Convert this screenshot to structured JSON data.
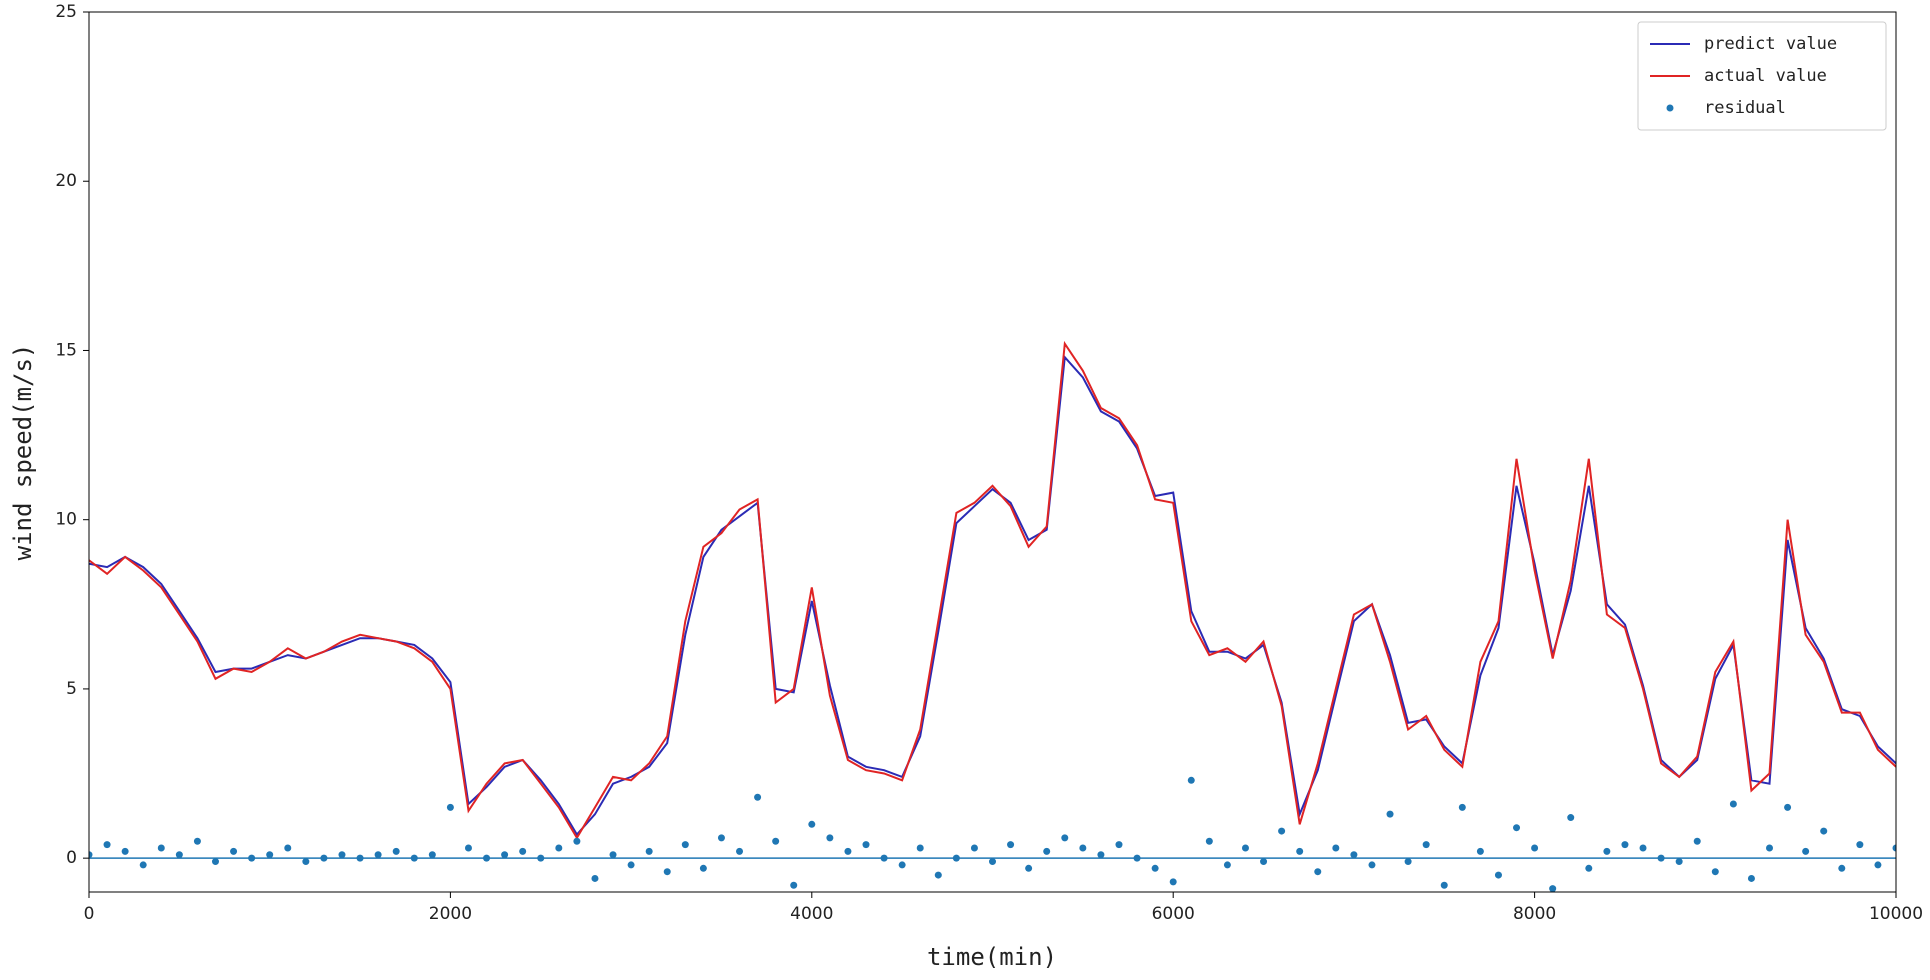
{
  "chart_data": {
    "type": "line",
    "xlabel": "time(min)",
    "ylabel": "wind speed(m/s)",
    "xlim": [
      0,
      10000
    ],
    "xticks": [
      0,
      2000,
      4000,
      6000,
      8000,
      10000
    ],
    "ylim": [
      -1,
      25
    ],
    "yticks": [
      0,
      5,
      10,
      15,
      20,
      25
    ],
    "legend": "upper right",
    "x": [
      0,
      100,
      200,
      300,
      400,
      500,
      600,
      700,
      800,
      900,
      1000,
      1100,
      1200,
      1300,
      1400,
      1500,
      1600,
      1700,
      1800,
      1900,
      2000,
      2100,
      2200,
      2300,
      2400,
      2500,
      2600,
      2700,
      2800,
      2900,
      3000,
      3100,
      3200,
      3300,
      3400,
      3500,
      3600,
      3700,
      3800,
      3900,
      4000,
      4100,
      4200,
      4300,
      4400,
      4500,
      4600,
      4700,
      4800,
      4900,
      5000,
      5100,
      5200,
      5300,
      5400,
      5500,
      5600,
      5700,
      5800,
      5900,
      6000,
      6100,
      6200,
      6300,
      6400,
      6500,
      6600,
      6700,
      6800,
      6900,
      7000,
      7100,
      7200,
      7300,
      7400,
      7500,
      7600,
      7700,
      7800,
      7900,
      8000,
      8100,
      8200,
      8300,
      8400,
      8500,
      8600,
      8700,
      8800,
      8900,
      9000,
      9100,
      9200,
      9300,
      9400,
      9500,
      9600,
      9700,
      9800,
      9900,
      10000
    ],
    "series": [
      {
        "name": "predict value",
        "type": "line",
        "color": "#2b2bb5",
        "values": [
          8.7,
          8.6,
          8.9,
          8.6,
          8.1,
          7.3,
          6.5,
          5.5,
          5.6,
          5.6,
          5.8,
          6.0,
          5.9,
          6.1,
          6.3,
          6.5,
          6.5,
          6.4,
          6.3,
          5.9,
          5.2,
          1.6,
          2.1,
          2.7,
          2.9,
          2.3,
          1.6,
          0.7,
          1.3,
          2.2,
          2.4,
          2.7,
          3.4,
          6.6,
          8.9,
          9.7,
          10.1,
          10.5,
          5.0,
          4.9,
          7.6,
          5.1,
          3.0,
          2.7,
          2.6,
          2.4,
          3.6,
          6.7,
          9.9,
          10.4,
          10.9,
          10.5,
          9.4,
          9.7,
          14.8,
          14.2,
          13.2,
          12.9,
          12.1,
          10.7,
          10.8,
          7.3,
          6.1,
          6.1,
          5.9,
          6.3,
          4.6,
          1.3,
          2.6,
          4.8,
          7.0,
          7.5,
          6.0,
          4.0,
          4.1,
          3.3,
          2.8,
          5.4,
          6.8,
          11.0,
          8.7,
          6.0,
          7.9,
          11.0,
          7.5,
          6.9,
          5.1,
          2.9,
          2.4,
          2.9,
          5.3,
          6.3,
          2.3,
          2.2,
          9.4,
          6.8,
          5.9,
          4.4,
          4.2,
          3.3,
          2.8
        ]
      },
      {
        "name": "actual value",
        "type": "line",
        "color": "#e02424",
        "values": [
          8.8,
          8.4,
          8.9,
          8.5,
          8.0,
          7.2,
          6.4,
          5.3,
          5.6,
          5.5,
          5.8,
          6.2,
          5.9,
          6.1,
          6.4,
          6.6,
          6.5,
          6.4,
          6.2,
          5.8,
          5.0,
          1.4,
          2.2,
          2.8,
          2.9,
          2.2,
          1.5,
          0.6,
          1.5,
          2.4,
          2.3,
          2.8,
          3.6,
          7.0,
          9.2,
          9.6,
          10.3,
          10.6,
          4.6,
          5.0,
          8.0,
          4.8,
          2.9,
          2.6,
          2.5,
          2.3,
          3.8,
          7.0,
          10.2,
          10.5,
          11.0,
          10.4,
          9.2,
          9.8,
          15.2,
          14.4,
          13.3,
          13.0,
          12.2,
          10.6,
          10.5,
          7.0,
          6.0,
          6.2,
          5.8,
          6.4,
          4.5,
          1.0,
          2.8,
          5.0,
          7.2,
          7.5,
          5.8,
          3.8,
          4.2,
          3.2,
          2.7,
          5.8,
          7.0,
          11.8,
          8.5,
          5.9,
          8.2,
          11.8,
          7.2,
          6.8,
          5.0,
          2.8,
          2.4,
          3.0,
          5.5,
          6.4,
          2.0,
          2.5,
          10.0,
          6.6,
          5.8,
          4.3,
          4.3,
          3.2,
          2.7
        ]
      },
      {
        "name": "residual",
        "type": "scatter",
        "color": "#1f77b4",
        "values": [
          0.1,
          0.4,
          0.2,
          -0.2,
          0.3,
          0.1,
          0.5,
          -0.1,
          0.2,
          0.0,
          0.1,
          0.3,
          -0.1,
          0.0,
          0.1,
          0.0,
          0.1,
          0.2,
          0.0,
          0.1,
          1.5,
          0.3,
          0.0,
          0.1,
          0.2,
          0.0,
          0.3,
          0.5,
          -0.6,
          0.1,
          -0.2,
          0.2,
          -0.4,
          0.4,
          -0.3,
          0.6,
          0.2,
          1.8,
          0.5,
          -0.8,
          1.0,
          0.6,
          0.2,
          0.4,
          0.0,
          -0.2,
          0.3,
          -0.5,
          0.0,
          0.3,
          -0.1,
          0.4,
          -0.3,
          0.2,
          0.6,
          0.3,
          0.1,
          0.4,
          0.0,
          -0.3,
          -0.7,
          2.3,
          0.5,
          -0.2,
          0.3,
          -0.1,
          0.8,
          0.2,
          -0.4,
          0.3,
          0.1,
          -0.2,
          1.3,
          -0.1,
          0.4,
          -0.8,
          1.5,
          0.2,
          -0.5,
          0.9,
          0.3,
          -0.9,
          1.2,
          -0.3,
          0.2,
          0.4,
          0.3,
          0.0,
          -0.1,
          0.5,
          -0.4,
          1.6,
          -0.6,
          0.3,
          1.5,
          0.2,
          0.8,
          -0.3,
          0.4,
          -0.2,
          0.3
        ]
      }
    ]
  }
}
